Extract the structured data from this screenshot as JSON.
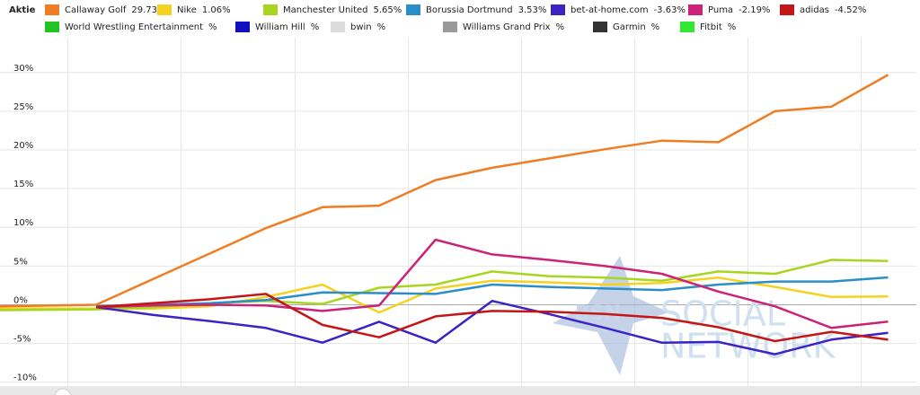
{
  "chart_data": {
    "type": "line",
    "legend_title": "Aktie",
    "x": [
      -1.7,
      0,
      1,
      2,
      3,
      4,
      5,
      6,
      7,
      8,
      9,
      10,
      11,
      12,
      13,
      14
    ],
    "xlim": [
      -1.7,
      14.5
    ],
    "ylim": [
      -10.5,
      34.5
    ],
    "yticks": [
      {
        "value": 30,
        "label": "30%"
      },
      {
        "value": 25,
        "label": "25%"
      },
      {
        "value": 20,
        "label": "20%"
      },
      {
        "value": 15,
        "label": "15%"
      },
      {
        "value": 10,
        "label": "10%"
      },
      {
        "value": 5,
        "label": "5%"
      },
      {
        "value": 0,
        "label": "0%"
      },
      {
        "value": -5,
        "label": "-5%"
      },
      {
        "value": -10,
        "label": "-10%"
      }
    ],
    "grid": true,
    "watermark": [
      "SOCIAL",
      "NETWORK"
    ],
    "series": [
      {
        "name": "Callaway Golf",
        "legend_label": "29.73%",
        "color": "#f07d22",
        "values": [
          -0.2,
          0,
          3.3,
          6.6,
          9.9,
          12.6,
          12.8,
          16.1,
          17.7,
          18.9,
          20.1,
          21.2,
          21.0,
          25.0,
          25.6,
          29.7
        ]
      },
      {
        "name": "Nike",
        "legend_label": "1.06%",
        "color": "#f5d21f",
        "values": [
          -0.5,
          -0.5,
          -0.5,
          -0.2,
          1.0,
          2.6,
          -1.0,
          2.1,
          3.1,
          2.9,
          2.6,
          2.8,
          3.5,
          2.3,
          1.0,
          1.06
        ]
      },
      {
        "name": "Manchester United",
        "legend_label": "5.65%",
        "color": "#a8d51f",
        "values": [
          -0.7,
          -0.6,
          -0.3,
          0.2,
          0.5,
          0.1,
          2.2,
          2.6,
          4.3,
          3.7,
          3.5,
          3.1,
          4.3,
          4.0,
          5.8,
          5.65
        ]
      },
      {
        "name": "Borussia Dortmund",
        "legend_label": "3.53%",
        "color": "#2b8ec8",
        "values": [
          null,
          -0.2,
          0,
          0.2,
          0.6,
          1.6,
          1.5,
          1.4,
          2.6,
          2.3,
          2.1,
          1.9,
          2.6,
          3.0,
          3.0,
          3.53
        ]
      },
      {
        "name": "bet-at-home.com",
        "legend_label": "-3.63%",
        "color": "#3b23c4",
        "values": [
          null,
          -0.3,
          -1.3,
          -2.1,
          -3.0,
          -4.9,
          -2.2,
          -4.9,
          0.5,
          -1.2,
          -3.0,
          -4.9,
          -4.8,
          -6.4,
          -4.5,
          -3.63
        ]
      },
      {
        "name": "Puma",
        "legend_label": "-2.19%",
        "color": "#cc2277",
        "values": [
          null,
          -0.3,
          -0.1,
          0,
          -0.1,
          -0.8,
          -0.1,
          8.4,
          6.5,
          5.8,
          5.0,
          4.0,
          1.7,
          -0.2,
          -3.0,
          -2.19
        ]
      },
      {
        "name": "adidas",
        "legend_label": "-4.52%",
        "color": "#c41616",
        "values": [
          null,
          -0.3,
          0.2,
          0.7,
          1.4,
          -2.6,
          -4.2,
          -1.5,
          -0.8,
          -0.9,
          -1.2,
          -1.7,
          -2.9,
          -4.7,
          -3.5,
          -4.52
        ]
      },
      {
        "name": "World Wrestling Entertainment",
        "legend_label": "%",
        "color": "#22c322",
        "values": [
          null,
          null,
          null,
          null,
          null,
          null,
          null,
          null,
          null,
          null,
          null,
          null,
          null,
          null,
          null,
          null
        ]
      },
      {
        "name": "William Hill",
        "legend_label": "%",
        "color": "#1010c0",
        "values": [
          null,
          null,
          null,
          null,
          null,
          null,
          null,
          null,
          null,
          null,
          null,
          null,
          null,
          null,
          null,
          null
        ]
      },
      {
        "name": "bwin",
        "legend_label": "%",
        "color": "#dcdcdc",
        "values": [
          null,
          null,
          null,
          null,
          null,
          null,
          null,
          null,
          null,
          null,
          null,
          null,
          null,
          null,
          null,
          null
        ]
      },
      {
        "name": "Williams Grand Prix",
        "legend_label": "%",
        "color": "#9a9a9a",
        "values": [
          null,
          null,
          null,
          null,
          null,
          null,
          null,
          null,
          null,
          null,
          null,
          null,
          null,
          null,
          null,
          null
        ]
      },
      {
        "name": "Garmin",
        "legend_label": "%",
        "color": "#333333",
        "values": [
          null,
          null,
          null,
          null,
          null,
          null,
          null,
          null,
          null,
          null,
          null,
          null,
          null,
          null,
          null,
          null
        ]
      },
      {
        "name": "Fitbit",
        "legend_label": "%",
        "color": "#33e833",
        "values": [
          null,
          null,
          null,
          null,
          null,
          null,
          null,
          null,
          null,
          null,
          null,
          null,
          null,
          null,
          null,
          null
        ]
      }
    ]
  }
}
